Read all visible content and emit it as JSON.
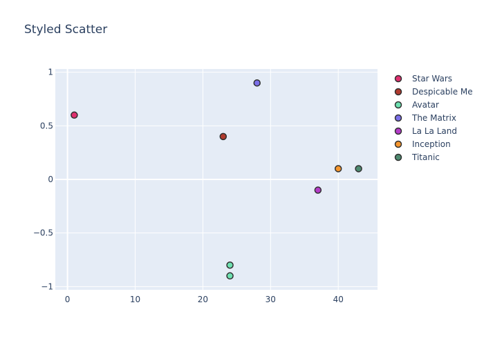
{
  "chart_data": {
    "type": "scatter",
    "title": "Styled Scatter",
    "xlabel": "",
    "ylabel": "",
    "xlim": [
      -1.8,
      45.8
    ],
    "ylim": [
      -1.03,
      1.03
    ],
    "x_ticks": [
      0,
      10,
      20,
      30,
      40
    ],
    "y_ticks": [
      {
        "value": 1,
        "label": "1"
      },
      {
        "value": 0.5,
        "label": "0.5"
      },
      {
        "value": 0,
        "label": "0"
      },
      {
        "value": -0.5,
        "label": "−0.5"
      },
      {
        "value": -1,
        "label": "−1"
      }
    ],
    "grid": true,
    "legend_position": "right",
    "series": [
      {
        "name": "Star Wars",
        "color": "#e0306f",
        "points": [
          {
            "x": 1,
            "y": 0.6
          }
        ]
      },
      {
        "name": "Despicable Me",
        "color": "#b03a2e",
        "points": [
          {
            "x": 23,
            "y": 0.4
          }
        ]
      },
      {
        "name": "Avatar",
        "color": "#6ee0b0",
        "points": [
          {
            "x": 24,
            "y": -0.8
          },
          {
            "x": 24,
            "y": -0.9
          }
        ]
      },
      {
        "name": "The Matrix",
        "color": "#7b6fe8",
        "points": [
          {
            "x": 28,
            "y": 0.9
          }
        ]
      },
      {
        "name": "La La Land",
        "color": "#b43cc8",
        "points": [
          {
            "x": 37,
            "y": -0.1
          }
        ]
      },
      {
        "name": "Inception",
        "color": "#f5962e",
        "points": [
          {
            "x": 40,
            "y": 0.1
          }
        ]
      },
      {
        "name": "Titanic",
        "color": "#4e8a70",
        "points": [
          {
            "x": 43,
            "y": 0.1
          }
        ]
      }
    ]
  }
}
